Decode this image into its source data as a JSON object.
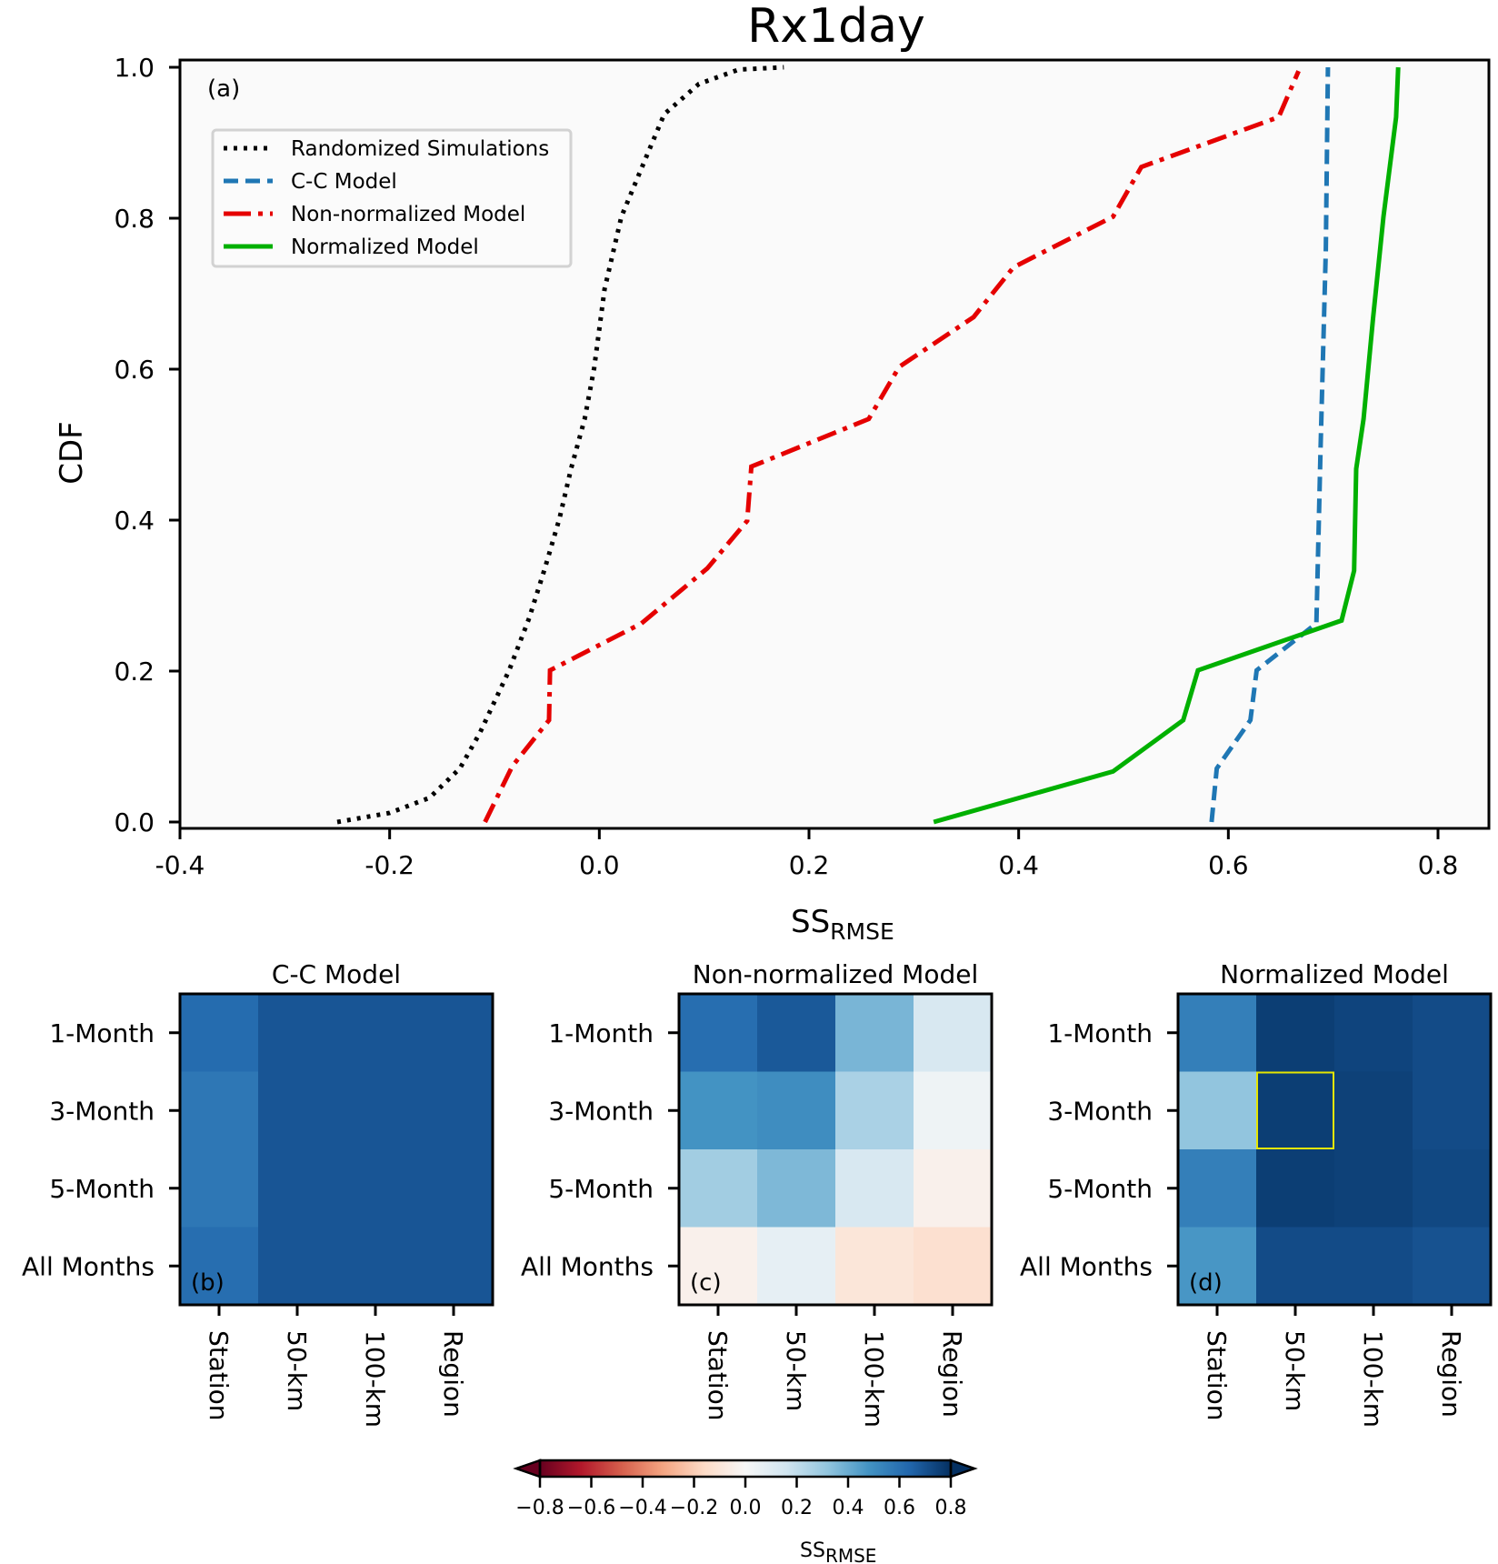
{
  "chart_data": [
    {
      "panel": "a",
      "type": "line",
      "title": "Rx1day",
      "panel_tag": "(a)",
      "xlabel": "SS",
      "xlabel_subscript": "RMSE",
      "ylabel": "CDF",
      "xlim": [
        -0.4,
        0.85
      ],
      "ylim": [
        0.0,
        1.0
      ],
      "xticks": [
        -0.4,
        -0.2,
        0.0,
        0.2,
        0.4,
        0.6,
        0.8
      ],
      "xtick_labels": [
        "-0.4",
        "-0.2",
        "0.0",
        "0.2",
        "0.4",
        "0.6",
        "0.8"
      ],
      "yticks": [
        0.0,
        0.2,
        0.4,
        0.6,
        0.8,
        1.0
      ],
      "ytick_labels": [
        "0.0",
        "0.2",
        "0.4",
        "0.6",
        "0.8",
        "1.0"
      ],
      "grid": false,
      "legend_position": "top-left",
      "series": [
        {
          "name": "Randomized Simulations",
          "color": "#000000",
          "style": "dotted",
          "x": [
            -0.25,
            -0.2,
            -0.162,
            -0.133,
            -0.114,
            -0.086,
            -0.067,
            -0.052,
            -0.038,
            -0.027,
            -0.014,
            -0.005,
            0.005,
            0.021,
            0.048,
            0.062,
            0.095,
            0.133,
            0.176
          ],
          "y": [
            0.0,
            0.012,
            0.032,
            0.071,
            0.118,
            0.201,
            0.27,
            0.336,
            0.402,
            0.468,
            0.534,
            0.601,
            0.706,
            0.802,
            0.892,
            0.938,
            0.978,
            0.997,
            1.0
          ]
        },
        {
          "name": "C-C Model",
          "color": "#1f77b4",
          "style": "dashed",
          "x": [
            0.584,
            0.589,
            0.621,
            0.627,
            0.684,
            0.688,
            0.693,
            0.695
          ],
          "y": [
            0.0,
            0.071,
            0.135,
            0.201,
            0.263,
            0.495,
            0.759,
            1.0
          ]
        },
        {
          "name": "Non-normalized Model",
          "color": "#e50000",
          "style": "dashdot",
          "x": [
            -0.109,
            -0.083,
            -0.048,
            -0.047,
            0.04,
            0.103,
            0.141,
            0.145,
            0.257,
            0.286,
            0.357,
            0.395,
            0.49,
            0.517,
            0.648,
            0.667
          ],
          "y": [
            0.0,
            0.074,
            0.135,
            0.201,
            0.263,
            0.336,
            0.399,
            0.471,
            0.534,
            0.603,
            0.669,
            0.735,
            0.802,
            0.868,
            0.934,
            0.995
          ]
        },
        {
          "name": "Normalized Model",
          "color": "#00b000",
          "style": "solid",
          "x": [
            0.319,
            0.49,
            0.557,
            0.571,
            0.708,
            0.72,
            0.722,
            0.729,
            0.738,
            0.748,
            0.76,
            0.762
          ],
          "y": [
            0.0,
            0.067,
            0.135,
            0.201,
            0.267,
            0.333,
            0.468,
            0.534,
            0.667,
            0.802,
            0.934,
            1.0
          ]
        }
      ]
    },
    {
      "panel": "b",
      "type": "heatmap",
      "title": "C-C Model",
      "panel_tag": "(b)",
      "rows": [
        "1-Month",
        "3-Month",
        "5-Month",
        "All Months"
      ],
      "cols": [
        "Station",
        "50-km",
        "100-km",
        "Region"
      ],
      "values": [
        [
          0.62,
          0.69,
          0.69,
          0.69
        ],
        [
          0.58,
          0.69,
          0.69,
          0.69
        ],
        [
          0.58,
          0.69,
          0.69,
          0.69
        ],
        [
          0.61,
          0.69,
          0.69,
          0.69
        ]
      ]
    },
    {
      "panel": "c",
      "type": "heatmap",
      "title": "Non-normalized Model",
      "panel_tag": "(c)",
      "rows": [
        "1-Month",
        "3-Month",
        "5-Month",
        "All Months"
      ],
      "cols": [
        "Station",
        "50-km",
        "100-km",
        "Region"
      ],
      "values": [
        [
          0.61,
          0.68,
          0.37,
          0.13
        ],
        [
          0.48,
          0.5,
          0.26,
          0.04
        ],
        [
          0.28,
          0.36,
          0.13,
          -0.04
        ],
        [
          -0.04,
          0.07,
          -0.1,
          -0.13
        ]
      ]
    },
    {
      "panel": "d",
      "type": "heatmap",
      "title": "Normalized Model",
      "panel_tag": "(d)",
      "rows": [
        "1-Month",
        "3-Month",
        "5-Month",
        "All Months"
      ],
      "cols": [
        "Station",
        "50-km",
        "100-km",
        "Region"
      ],
      "values": [
        [
          0.55,
          0.76,
          0.74,
          0.72
        ],
        [
          0.32,
          0.76,
          0.75,
          0.72
        ],
        [
          0.55,
          0.76,
          0.75,
          0.73
        ],
        [
          0.47,
          0.72,
          0.72,
          0.7
        ]
      ],
      "highlight_cell": {
        "row": "3-Month",
        "col": "50-km",
        "color": "#e6e600"
      }
    }
  ],
  "colorbar": {
    "colormap": "RdBu",
    "vmin": -0.8,
    "vmax": 0.8,
    "extend": "both",
    "ticks": [
      -0.8,
      -0.6,
      -0.4,
      -0.2,
      0.0,
      0.2,
      0.4,
      0.6,
      0.8
    ],
    "tick_labels": [
      "−0.8",
      "−0.6",
      "−0.4",
      "−0.2",
      "0.0",
      "0.2",
      "0.4",
      "0.6",
      "0.8"
    ],
    "label": "SS",
    "label_subscript": "RMSE"
  }
}
